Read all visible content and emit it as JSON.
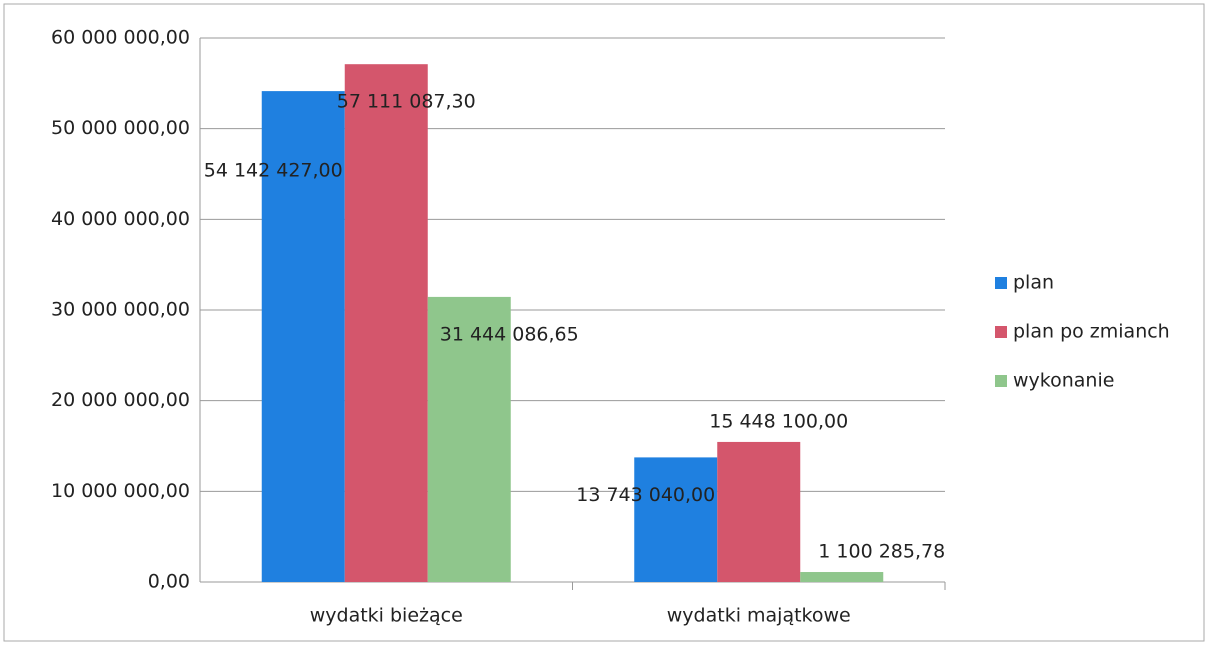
{
  "chart_data": {
    "type": "bar",
    "categories": [
      "wydatki bieżące",
      "wydatki majątkowe"
    ],
    "series": [
      {
        "name": "plan",
        "color": "#1f80e0",
        "values": [
          54142427.0,
          13743040.0
        ],
        "value_labels": [
          "54 142 427,00",
          "13 743 040,00"
        ]
      },
      {
        "name": "plan po zmianch",
        "color": "#d4566c",
        "values": [
          57111087.3,
          15448100.0
        ],
        "value_labels": [
          "57 111 087,30",
          "15 448 100,00"
        ]
      },
      {
        "name": "wykonanie",
        "color": "#8fc68c",
        "values": [
          31444086.65,
          1100285.78
        ],
        "value_labels": [
          "31 444 086,65",
          "1 100 285,78"
        ]
      }
    ],
    "ylim": [
      0,
      60000000
    ],
    "yticks": [
      {
        "value": 0,
        "label": "0,00"
      },
      {
        "value": 10000000,
        "label": "10 000 000,00"
      },
      {
        "value": 20000000,
        "label": "20 000 000,00"
      },
      {
        "value": 30000000,
        "label": "30 000 000,00"
      },
      {
        "value": 40000000,
        "label": "40 000 000,00"
      },
      {
        "value": 50000000,
        "label": "50 000 000,00"
      },
      {
        "value": 60000000,
        "label": "60 000 000,00"
      }
    ],
    "grid": true,
    "legend": "right"
  }
}
